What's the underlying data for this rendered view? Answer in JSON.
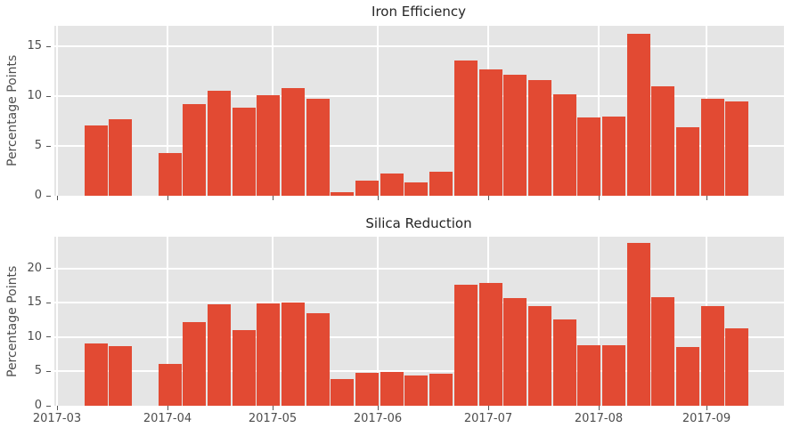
{
  "figure": {
    "background_color": "#ffffff",
    "plot_background_color": "#e5e5e5",
    "grid_color": "#ffffff",
    "bar_color": "#e24a33",
    "tick_text_color": "#4d4d4d",
    "title_text_color": "#262626"
  },
  "chart_data": [
    {
      "type": "bar",
      "title": "Iron Efficiency",
      "ylabel": "Percentage Points",
      "ylim": [
        0,
        17.1
      ],
      "yticks": [
        0,
        5,
        10,
        15
      ],
      "x_tick_labels": [
        "2017-03",
        "2017-04",
        "2017-05",
        "2017-06",
        "2017-07",
        "2017-08",
        "2017-09"
      ],
      "x_axis_labels_visible": false,
      "grid": true,
      "legend": "none",
      "bar_interval": "weekly",
      "values": [
        7.1,
        7.7,
        null,
        4.3,
        9.2,
        10.6,
        8.9,
        10.1,
        10.8,
        9.8,
        0.4,
        1.5,
        2.2,
        1.3,
        2.4,
        13.6,
        12.7,
        12.2,
        11.6,
        10.2,
        7.9,
        8.0,
        16.3,
        11.0,
        6.9,
        9.8,
        9.5
      ]
    },
    {
      "type": "bar",
      "title": "Silica Reduction",
      "ylabel": "Percentage Points",
      "ylim": [
        0,
        24.6
      ],
      "yticks": [
        0,
        5,
        10,
        15,
        20
      ],
      "x_tick_labels": [
        "2017-03",
        "2017-04",
        "2017-05",
        "2017-06",
        "2017-07",
        "2017-08",
        "2017-09"
      ],
      "x_axis_labels_visible": true,
      "grid": true,
      "legend": "none",
      "bar_interval": "weekly",
      "values": [
        9.1,
        8.7,
        null,
        6.1,
        12.2,
        14.8,
        11.0,
        14.9,
        15.0,
        13.5,
        3.9,
        4.8,
        4.9,
        4.4,
        4.7,
        17.6,
        17.9,
        15.7,
        14.5,
        12.6,
        8.8,
        8.8,
        23.7,
        15.8,
        8.6,
        14.5,
        11.3
      ]
    }
  ]
}
